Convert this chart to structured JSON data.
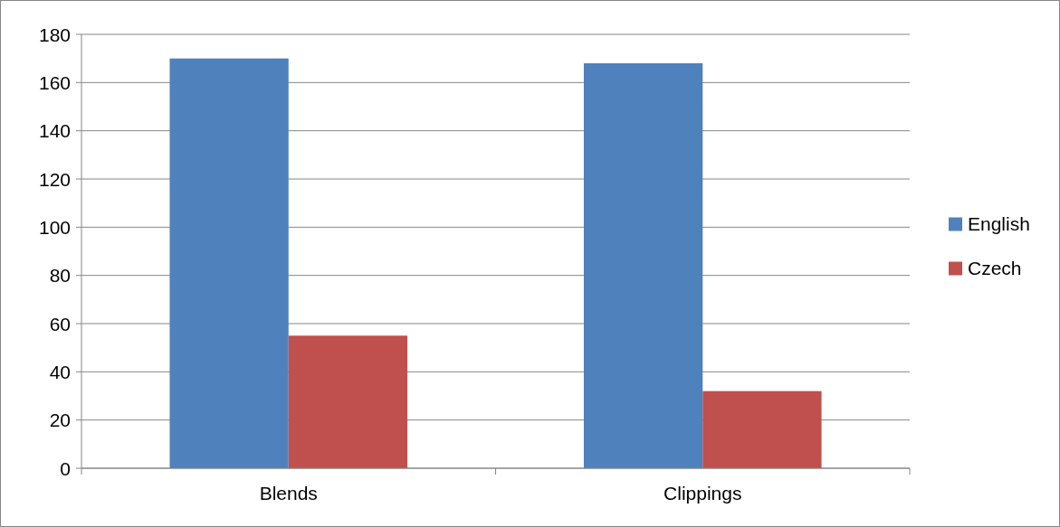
{
  "chart_data": {
    "type": "bar",
    "categories": [
      "Blends",
      "Clippings"
    ],
    "series": [
      {
        "name": "English",
        "color": "#4f81bd",
        "values": [
          170,
          168
        ]
      },
      {
        "name": "Czech",
        "color": "#c0504d",
        "values": [
          55,
          32
        ]
      }
    ],
    "ylim": [
      0,
      180
    ],
    "yticks": [
      0,
      20,
      40,
      60,
      80,
      100,
      120,
      140,
      160,
      180
    ],
    "grid": "y",
    "legend": "right"
  }
}
